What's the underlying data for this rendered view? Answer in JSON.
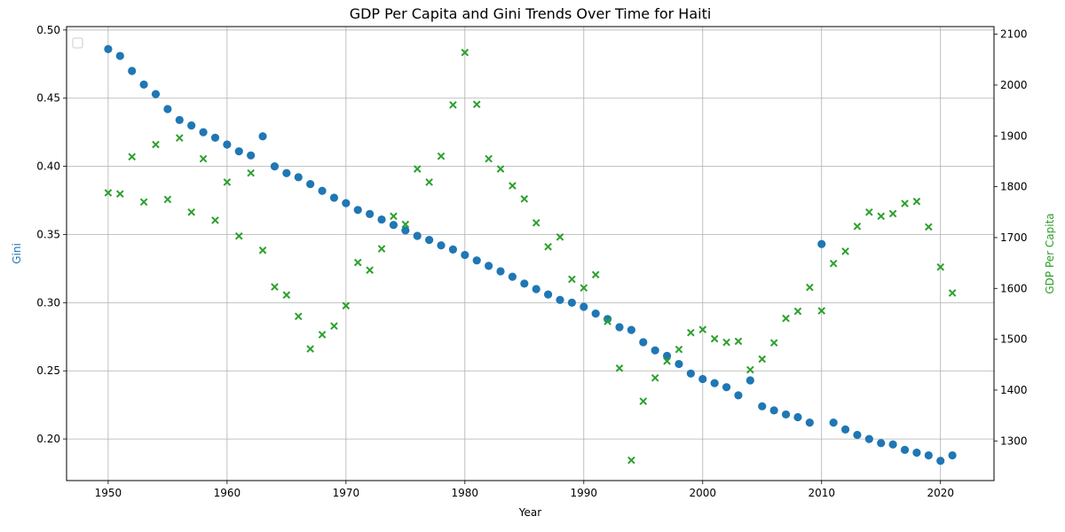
{
  "chart_data": {
    "type": "scatter",
    "title": "GDP Per Capita and Gini Trends Over Time for Haiti",
    "xlabel": "Year",
    "ylabel_left": "Gini",
    "ylabel_right": "GDP Per Capita",
    "xlim": [
      1946.5,
      2024.5
    ],
    "ylim_left": [
      0.1695,
      0.5025
    ],
    "ylim_right": [
      1222,
      2115
    ],
    "x_ticks": [
      1950,
      1960,
      1970,
      1980,
      1990,
      2000,
      2010,
      2020
    ],
    "y_left_ticks": [
      0.2,
      0.25,
      0.3,
      0.35,
      0.4,
      0.45,
      0.5
    ],
    "y_right_ticks": [
      1300,
      1400,
      1500,
      1600,
      1700,
      1800,
      1900,
      2000,
      2100
    ],
    "grid": true,
    "legend_location": "upper left",
    "colors": {
      "gini": "#1f77b4",
      "gdp": "#2ca02c"
    },
    "series": [
      {
        "axis": "left",
        "marker": "circle",
        "x": [
          1950,
          1951,
          1952,
          1953,
          1954,
          1955,
          1956,
          1957,
          1958,
          1959,
          1960,
          1961,
          1962,
          1963,
          1964,
          1965,
          1966,
          1967,
          1968,
          1969,
          1970,
          1971,
          1972,
          1973,
          1974,
          1975,
          1976,
          1977,
          1978,
          1979,
          1980,
          1981,
          1982,
          1983,
          1984,
          1985,
          1986,
          1987,
          1988,
          1989,
          1990,
          1991,
          1992,
          1993,
          1994,
          1995,
          1996,
          1997,
          1998,
          1999,
          2000,
          2001,
          2002,
          2003,
          2004,
          2005,
          2006,
          2007,
          2008,
          2009,
          2010,
          2011,
          2012,
          2013,
          2014,
          2015,
          2016,
          2017,
          2018,
          2019,
          2020,
          2021
        ],
        "values": [
          0.486,
          0.481,
          0.47,
          0.46,
          0.453,
          0.442,
          0.434,
          0.43,
          0.425,
          0.421,
          0.416,
          0.411,
          0.408,
          0.422,
          0.4,
          0.395,
          0.392,
          0.387,
          0.382,
          0.377,
          0.373,
          0.368,
          0.365,
          0.361,
          0.357,
          0.353,
          0.349,
          0.346,
          0.342,
          0.339,
          0.335,
          0.331,
          0.327,
          0.323,
          0.319,
          0.314,
          0.31,
          0.306,
          0.302,
          0.3,
          0.297,
          0.292,
          0.288,
          0.282,
          0.28,
          0.271,
          0.265,
          0.261,
          0.255,
          0.248,
          0.244,
          0.241,
          0.238,
          0.232,
          0.243,
          0.224,
          0.221,
          0.218,
          0.216,
          0.212,
          0.343,
          0.212,
          0.207,
          0.203,
          0.2,
          0.197,
          0.196,
          0.192,
          0.19,
          0.188,
          0.184,
          0.188
        ]
      },
      {
        "axis": "right",
        "marker": "x",
        "x": [
          1950,
          1951,
          1952,
          1953,
          1954,
          1955,
          1956,
          1957,
          1958,
          1959,
          1960,
          1961,
          1962,
          1963,
          1964,
          1965,
          1966,
          1967,
          1968,
          1969,
          1970,
          1971,
          1972,
          1973,
          1974,
          1975,
          1976,
          1977,
          1978,
          1979,
          1980,
          1981,
          1982,
          1983,
          1984,
          1985,
          1986,
          1987,
          1988,
          1989,
          1990,
          1991,
          1992,
          1993,
          1994,
          1995,
          1996,
          1997,
          1998,
          1999,
          2000,
          2001,
          2002,
          2003,
          2004,
          2005,
          2006,
          2007,
          2008,
          2009,
          2010,
          2011,
          2012,
          2013,
          2014,
          2015,
          2016,
          2017,
          2018,
          2019,
          2020,
          2021
        ],
        "values": [
          1788,
          1786,
          1859,
          1770,
          1883,
          1775,
          1896,
          1750,
          1855,
          1734,
          1809,
          1703,
          1827,
          1675,
          1603,
          1587,
          1545,
          1481,
          1509,
          1526,
          1566,
          1651,
          1636,
          1678,
          1742,
          1726,
          1835,
          1809,
          1860,
          1961,
          2064,
          1962,
          1855,
          1835,
          1802,
          1776,
          1729,
          1682,
          1701,
          1618,
          1601,
          1627,
          1535,
          1443,
          1262,
          1378,
          1424,
          1457,
          1480,
          1513,
          1519,
          1501,
          1494,
          1496,
          1440,
          1461,
          1493,
          1541,
          1555,
          1602,
          1556,
          1649,
          1673,
          1722,
          1750,
          1742,
          1747,
          1767,
          1771,
          1721,
          1642,
          1591
        ]
      }
    ]
  }
}
